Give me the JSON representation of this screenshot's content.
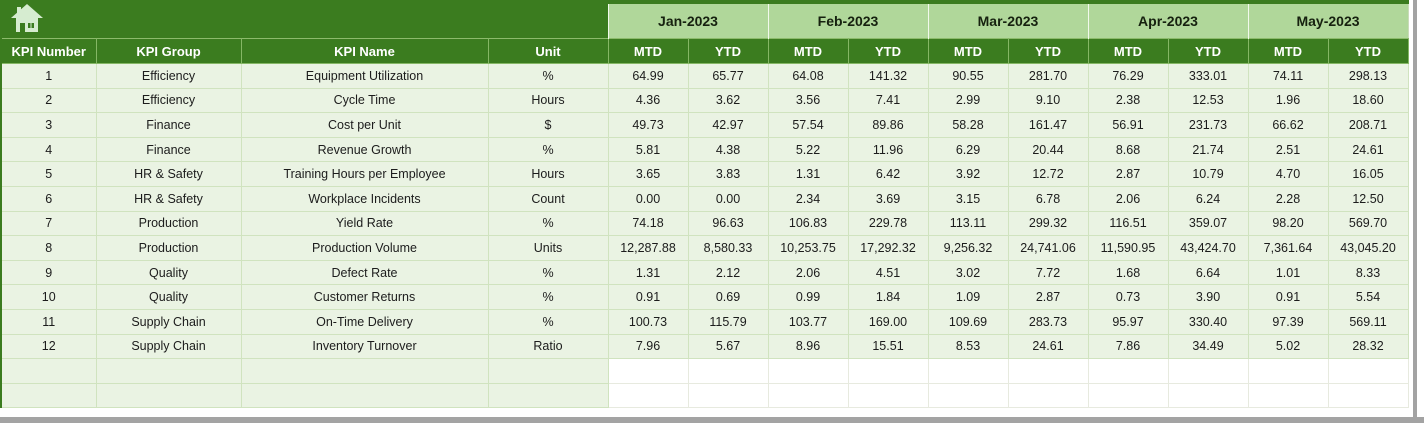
{
  "colors": {
    "header_green": "#3b7c1f",
    "month_band_green": "#b0d79a",
    "row_green": "#eaf3e3",
    "frame_grey": "#a3a3a3"
  },
  "banner": {
    "home_icon": "home-icon"
  },
  "table": {
    "columns": [
      "KPI Number",
      "KPI Group",
      "KPI Name",
      "Unit"
    ],
    "months": [
      "Jan-2023",
      "Feb-2023",
      "Mar-2023",
      "Apr-2023",
      "May-2023"
    ],
    "subcolumns": [
      "MTD",
      "YTD"
    ],
    "rows": [
      {
        "kpi_number": "1",
        "group": "Efficiency",
        "name": "Equipment Utilization",
        "unit": "%",
        "values": [
          "64.99",
          "65.77",
          "64.08",
          "141.32",
          "90.55",
          "281.70",
          "76.29",
          "333.01",
          "74.11",
          "298.13"
        ]
      },
      {
        "kpi_number": "2",
        "group": "Efficiency",
        "name": "Cycle Time",
        "unit": "Hours",
        "values": [
          "4.36",
          "3.62",
          "3.56",
          "7.41",
          "2.99",
          "9.10",
          "2.38",
          "12.53",
          "1.96",
          "18.60"
        ]
      },
      {
        "kpi_number": "3",
        "group": "Finance",
        "name": "Cost per Unit",
        "unit": "$",
        "values": [
          "49.73",
          "42.97",
          "57.54",
          "89.86",
          "58.28",
          "161.47",
          "56.91",
          "231.73",
          "66.62",
          "208.71"
        ]
      },
      {
        "kpi_number": "4",
        "group": "Finance",
        "name": "Revenue Growth",
        "unit": "%",
        "values": [
          "5.81",
          "4.38",
          "5.22",
          "11.96",
          "6.29",
          "20.44",
          "8.68",
          "21.74",
          "2.51",
          "24.61"
        ]
      },
      {
        "kpi_number": "5",
        "group": "HR & Safety",
        "name": "Training Hours per Employee",
        "unit": "Hours",
        "values": [
          "3.65",
          "3.83",
          "1.31",
          "6.42",
          "3.92",
          "12.72",
          "2.87",
          "10.79",
          "4.70",
          "16.05"
        ]
      },
      {
        "kpi_number": "6",
        "group": "HR & Safety",
        "name": "Workplace Incidents",
        "unit": "Count",
        "values": [
          "0.00",
          "0.00",
          "2.34",
          "3.69",
          "3.15",
          "6.78",
          "2.06",
          "6.24",
          "2.28",
          "12.50"
        ]
      },
      {
        "kpi_number": "7",
        "group": "Production",
        "name": "Yield Rate",
        "unit": "%",
        "values": [
          "74.18",
          "96.63",
          "106.83",
          "229.78",
          "113.11",
          "299.32",
          "116.51",
          "359.07",
          "98.20",
          "569.70"
        ]
      },
      {
        "kpi_number": "8",
        "group": "Production",
        "name": "Production Volume",
        "unit": "Units",
        "values": [
          "12,287.88",
          "8,580.33",
          "10,253.75",
          "17,292.32",
          "9,256.32",
          "24,741.06",
          "11,590.95",
          "43,424.70",
          "7,361.64",
          "43,045.20"
        ]
      },
      {
        "kpi_number": "9",
        "group": "Quality",
        "name": "Defect Rate",
        "unit": "%",
        "values": [
          "1.31",
          "2.12",
          "2.06",
          "4.51",
          "3.02",
          "7.72",
          "1.68",
          "6.64",
          "1.01",
          "8.33"
        ]
      },
      {
        "kpi_number": "10",
        "group": "Quality",
        "name": "Customer Returns",
        "unit": "%",
        "values": [
          "0.91",
          "0.69",
          "0.99",
          "1.84",
          "1.09",
          "2.87",
          "0.73",
          "3.90",
          "0.91",
          "5.54"
        ]
      },
      {
        "kpi_number": "11",
        "group": "Supply Chain",
        "name": "On-Time Delivery",
        "unit": "%",
        "values": [
          "100.73",
          "115.79",
          "103.77",
          "169.00",
          "109.69",
          "283.73",
          "95.97",
          "330.40",
          "97.39",
          "569.11"
        ]
      },
      {
        "kpi_number": "12",
        "group": "Supply Chain",
        "name": "Inventory Turnover",
        "unit": "Ratio",
        "values": [
          "7.96",
          "5.67",
          "8.96",
          "15.51",
          "8.53",
          "24.61",
          "7.86",
          "34.49",
          "5.02",
          "28.32"
        ]
      }
    ],
    "empty_row_count": 2
  }
}
